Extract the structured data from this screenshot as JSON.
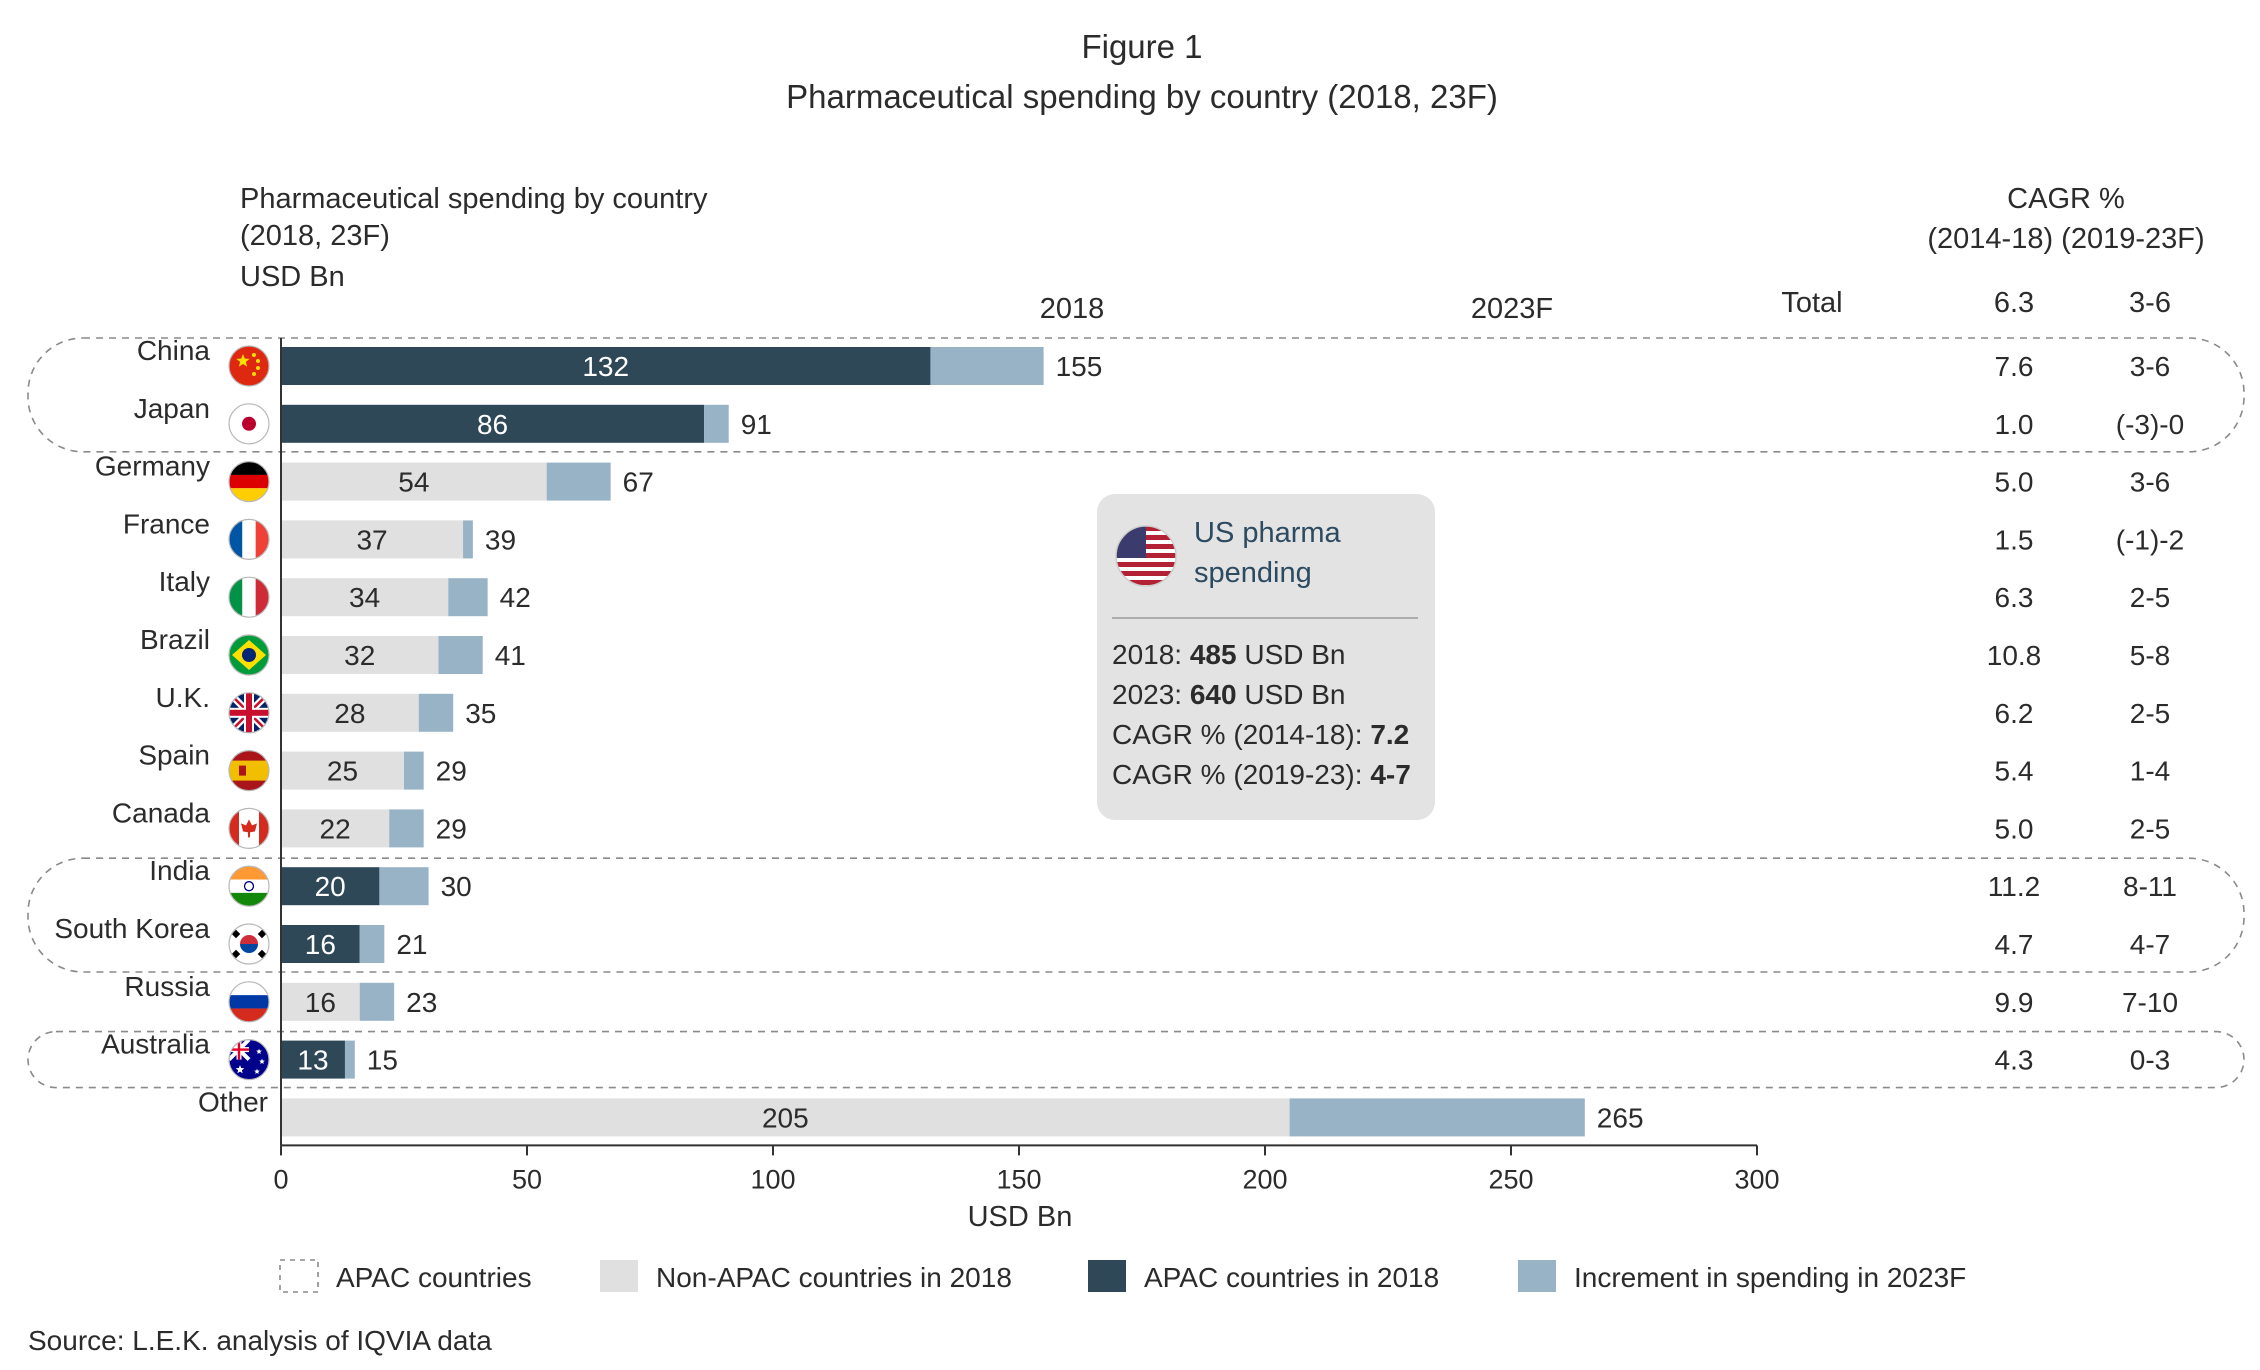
{
  "figure": {
    "label": "Figure 1",
    "title": "Pharmaceutical spending by country (2018, 23F)"
  },
  "chart_data": {
    "type": "bar",
    "subtitle_lines": [
      "Pharmaceutical spending by country",
      "(2018, 23F)",
      "USD Bn"
    ],
    "xlabel": "USD Bn",
    "xlim": [
      0,
      300
    ],
    "xticks": [
      "0",
      "50",
      "100",
      "150",
      "200",
      "250",
      "300"
    ],
    "column_headers": {
      "c2018": "2018",
      "c2023": "2023F",
      "total": "Total"
    },
    "cagr_header": {
      "title": "CAGR %",
      "periods": "(2014-18) (2019-23F)"
    },
    "total_row": {
      "cagr_14_18": "6.3",
      "cagr_19_23": "3-6"
    },
    "rows": [
      {
        "country": "China",
        "flag": "china-flag-icon",
        "v2018": 132,
        "v2023": 155,
        "apac": true,
        "cagr_14_18": "7.6",
        "cagr_19_23": "3-6"
      },
      {
        "country": "Japan",
        "flag": "japan-flag-icon",
        "v2018": 86,
        "v2023": 91,
        "apac": true,
        "cagr_14_18": "1.0",
        "cagr_19_23": "(-3)-0"
      },
      {
        "country": "Germany",
        "flag": "germany-flag-icon",
        "v2018": 54,
        "v2023": 67,
        "apac": false,
        "cagr_14_18": "5.0",
        "cagr_19_23": "3-6"
      },
      {
        "country": "France",
        "flag": "france-flag-icon",
        "v2018": 37,
        "v2023": 39,
        "apac": false,
        "cagr_14_18": "1.5",
        "cagr_19_23": "(-1)-2"
      },
      {
        "country": "Italy",
        "flag": "italy-flag-icon",
        "v2018": 34,
        "v2023": 42,
        "apac": false,
        "cagr_14_18": "6.3",
        "cagr_19_23": "2-5"
      },
      {
        "country": "Brazil",
        "flag": "brazil-flag-icon",
        "v2018": 32,
        "v2023": 41,
        "apac": false,
        "cagr_14_18": "10.8",
        "cagr_19_23": "5-8"
      },
      {
        "country": "U.K.",
        "flag": "uk-flag-icon",
        "v2018": 28,
        "v2023": 35,
        "apac": false,
        "cagr_14_18": "6.2",
        "cagr_19_23": "2-5"
      },
      {
        "country": "Spain",
        "flag": "spain-flag-icon",
        "v2018": 25,
        "v2023": 29,
        "apac": false,
        "cagr_14_18": "5.4",
        "cagr_19_23": "1-4"
      },
      {
        "country": "Canada",
        "flag": "canada-flag-icon",
        "v2018": 22,
        "v2023": 29,
        "apac": false,
        "cagr_14_18": "5.0",
        "cagr_19_23": "2-5"
      },
      {
        "country": "India",
        "flag": "india-flag-icon",
        "v2018": 20,
        "v2023": 30,
        "apac": true,
        "cagr_14_18": "11.2",
        "cagr_19_23": "8-11"
      },
      {
        "country": "South Korea",
        "flag": "south-korea-flag-icon",
        "v2018": 16,
        "v2023": 21,
        "apac": true,
        "cagr_14_18": "4.7",
        "cagr_19_23": "4-7"
      },
      {
        "country": "Russia",
        "flag": "russia-flag-icon",
        "v2018": 16,
        "v2023": 23,
        "apac": false,
        "cagr_14_18": "9.9",
        "cagr_19_23": "7-10"
      },
      {
        "country": "Australia",
        "flag": "australia-flag-icon",
        "v2018": 13,
        "v2023": 15,
        "apac": true,
        "cagr_14_18": "4.3",
        "cagr_19_23": "0-3"
      },
      {
        "country": "Other",
        "flag": "",
        "v2018": 205,
        "v2023": 265,
        "apac": false,
        "cagr_14_18": "",
        "cagr_19_23": ""
      }
    ],
    "apac_groups": [
      [
        "China",
        "Japan"
      ],
      [
        "India",
        "South Korea"
      ],
      [
        "Australia"
      ]
    ],
    "callout": {
      "title_lines": [
        "US pharma",
        "spending"
      ],
      "icon": "us-flag-icon",
      "lines": [
        {
          "prefix": "2018: ",
          "bold": "485",
          "suffix": " USD Bn"
        },
        {
          "prefix": "2023: ",
          "bold": "640",
          "suffix": " USD Bn"
        },
        {
          "prefix": "CAGR % (2014-18): ",
          "bold": "7.2",
          "suffix": ""
        },
        {
          "prefix": "CAGR % (2019-23): ",
          "bold": "4-7",
          "suffix": ""
        }
      ]
    },
    "legend": [
      {
        "label": "APAC countries",
        "kind": "dashed"
      },
      {
        "label": "Non-APAC countries in 2018",
        "kind": "non-apac"
      },
      {
        "label": "APAC countries in 2018",
        "kind": "apac"
      },
      {
        "label": "Increment in spending in 2023F",
        "kind": "increment"
      }
    ],
    "colors": {
      "apac": "#2f4858",
      "non_apac": "#e0e0e0",
      "increment": "#98b3c6",
      "callout_bg": "#e3e3e3",
      "axis": "#333333"
    }
  },
  "source": "Source: L.E.K. analysis of IQVIA data"
}
